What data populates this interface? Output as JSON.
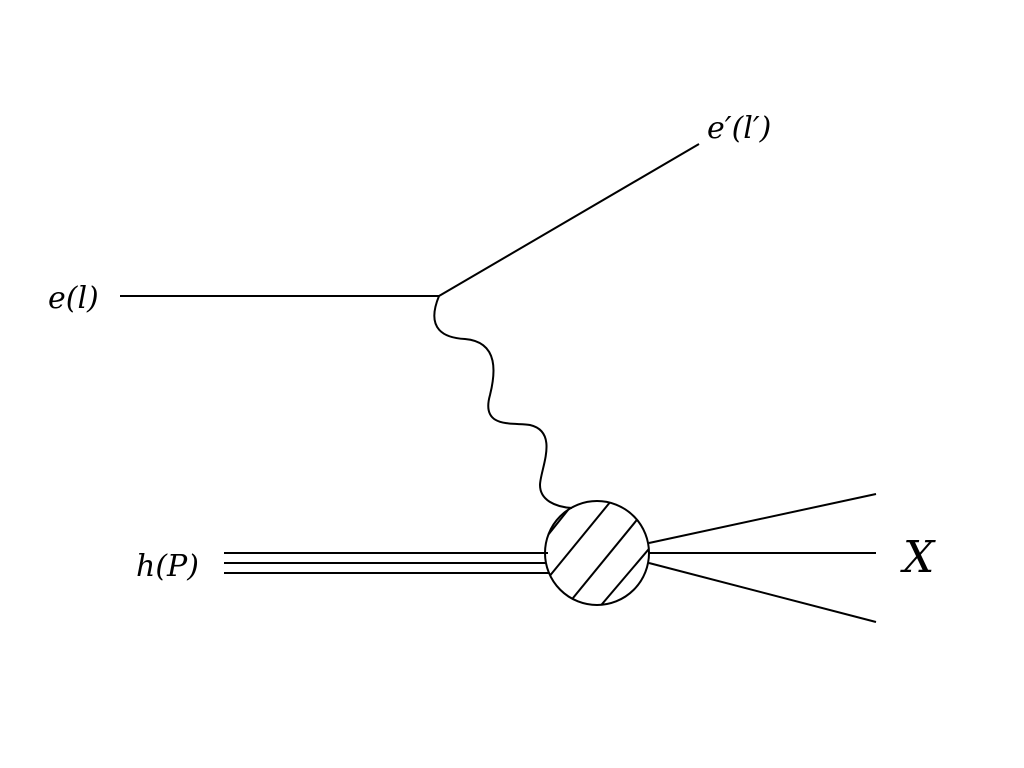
{
  "diagram": {
    "incoming_electron_label": "e(l)",
    "outgoing_electron_label": "e′(l′)",
    "hadron_label": "h(P)",
    "final_state_label": "X"
  },
  "colors": {
    "line": "#000000",
    "background": "#ffffff"
  }
}
